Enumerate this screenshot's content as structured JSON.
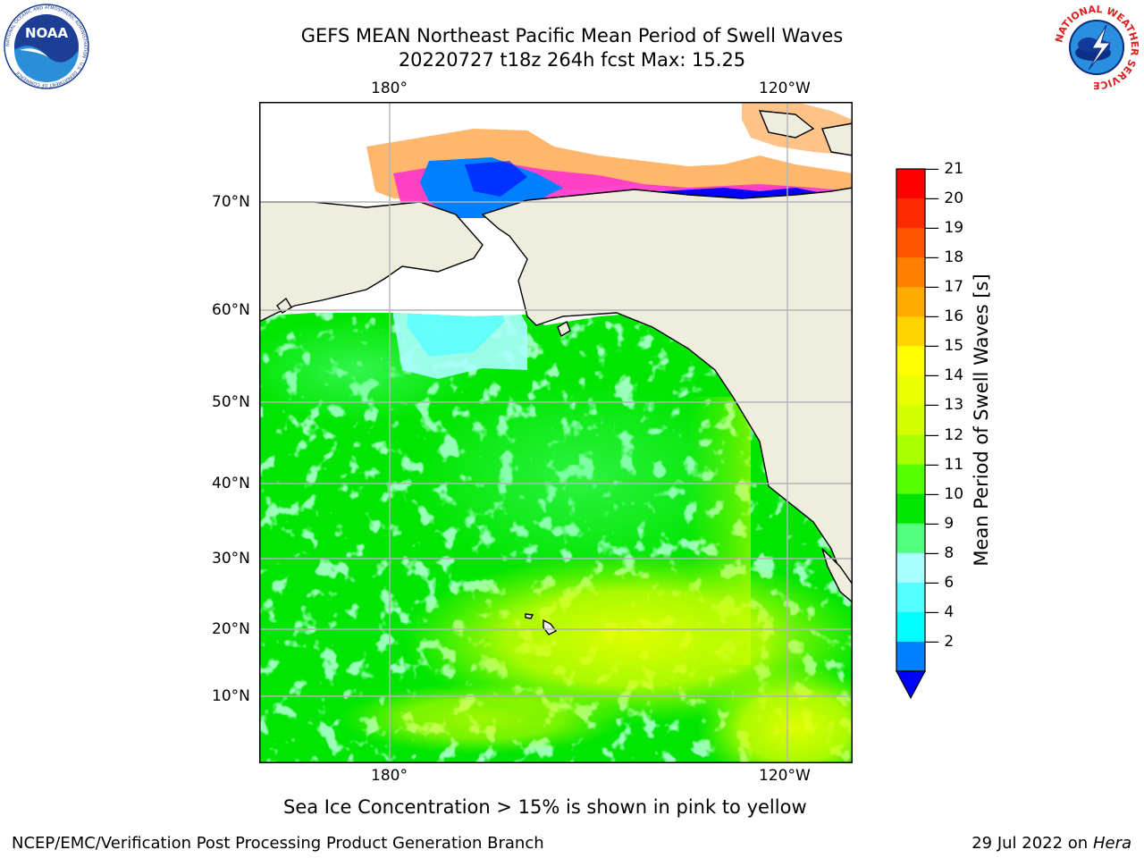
{
  "header": {
    "title_line1": "GEFS MEAN Northeast Pacific Mean Period of Swell Waves",
    "title_line2": "20220727 t18z 264h fcst   Max: 15.25"
  },
  "logos": {
    "left": {
      "text": "NOAA",
      "ring_text": "NATIONAL OCEANIC AND ATMOSPHERIC ADMINISTRATION · U.S. DEPARTMENT OF COMMERCE"
    },
    "right": {
      "ring_text": "NATIONAL WEATHER SERVICE"
    }
  },
  "map": {
    "lon_labels": [
      "180°",
      "120°W"
    ],
    "lat_labels": [
      "70°N",
      "60°N",
      "50°N",
      "40°N",
      "30°N",
      "20°N",
      "10°N"
    ],
    "land_color": "#efedde",
    "grid_color": "#b4b4b4"
  },
  "colorbar": {
    "label": "Mean Period of Swell Waves [s]",
    "ticks": [
      "21",
      "20",
      "19",
      "18",
      "17",
      "16",
      "15",
      "14",
      "13",
      "12",
      "11",
      "10",
      "9",
      "8",
      "6",
      "4",
      "2"
    ],
    "colors": [
      "#ff0000",
      "#ff2a00",
      "#ff5500",
      "#ff7f00",
      "#ffaa00",
      "#ffd400",
      "#ffff00",
      "#eaff00",
      "#d4ff00",
      "#aaff00",
      "#55ff00",
      "#00e600",
      "#55ff80",
      "#aaffff",
      "#55ffff",
      "#00ffff",
      "#0080ff"
    ],
    "extend_color": "#0000ff"
  },
  "caption": "Sea Ice Concentration > 15% is shown in pink to yellow",
  "footer": {
    "left": "NCEP/EMC/Verification Post Processing Product Generation Branch",
    "right_date": "29 Jul 2022 on ",
    "right_host": "Hera"
  }
}
